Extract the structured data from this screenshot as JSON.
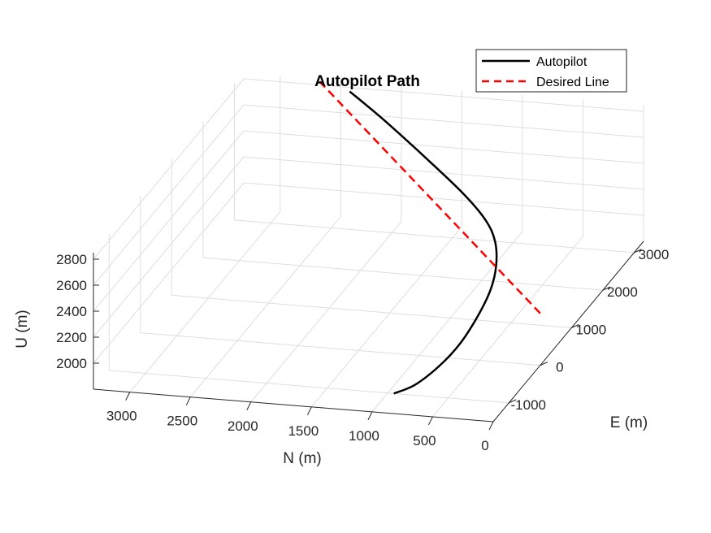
{
  "chart_data": {
    "type": "line",
    "title": "Autopilot Path",
    "xlabel": "N (m)",
    "ylabel": "E (m)",
    "zlabel": "U (m)",
    "xlim": [
      0,
      3300
    ],
    "ylim": [
      -1500,
      3300
    ],
    "zlim": [
      1800,
      2850
    ],
    "xticks": [
      0,
      500,
      1000,
      1500,
      2000,
      2500,
      3000
    ],
    "yticks": [
      -1000,
      0,
      1000,
      2000,
      3000
    ],
    "zticks": [
      2000,
      2200,
      2400,
      2600,
      2800
    ],
    "grid": true,
    "legend_position": "top-right",
    "series": [
      {
        "name": "Autopilot",
        "color": "#000000",
        "style": "solid",
        "points": [
          {
            "n": 950,
            "e": -1000,
            "u": 1800
          },
          {
            "n": 800,
            "e": -900,
            "u": 1850
          },
          {
            "n": 650,
            "e": -700,
            "u": 1950
          },
          {
            "n": 550,
            "e": -450,
            "u": 2050
          },
          {
            "n": 480,
            "e": -150,
            "u": 2180
          },
          {
            "n": 450,
            "e": 150,
            "u": 2300
          },
          {
            "n": 480,
            "e": 450,
            "u": 2400
          },
          {
            "n": 580,
            "e": 800,
            "u": 2480
          },
          {
            "n": 750,
            "e": 1150,
            "u": 2530
          },
          {
            "n": 1050,
            "e": 1600,
            "u": 2580
          },
          {
            "n": 1500,
            "e": 2150,
            "u": 2660
          },
          {
            "n": 2000,
            "e": 2750,
            "u": 2740
          },
          {
            "n": 2400,
            "e": 3200,
            "u": 2800
          }
        ]
      },
      {
        "name": "Desired Line",
        "color": "#ff0000",
        "style": "dashed",
        "points": [
          {
            "n": 0,
            "e": 0,
            "u": 2200
          },
          {
            "n": 2700,
            "e": 3300,
            "u": 2850
          }
        ]
      }
    ]
  }
}
